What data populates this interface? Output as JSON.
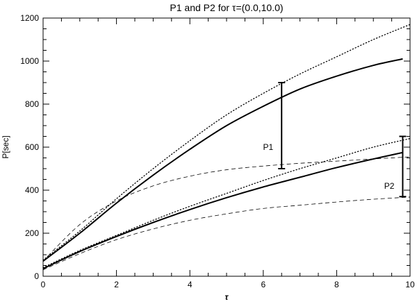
{
  "chart_data": {
    "type": "line",
    "title": "P1 and P2 for τ=(0.0,10.0)",
    "xlabel": "τ",
    "ylabel": "P[sec]",
    "xlim": [
      0,
      10
    ],
    "ylim": [
      0,
      1200
    ],
    "xticks": [
      0,
      2,
      4,
      6,
      8,
      10
    ],
    "yticks": [
      0,
      200,
      400,
      600,
      800,
      1000,
      1200
    ],
    "grid": false,
    "series": [
      {
        "style": "solid",
        "width": "thick",
        "x": [
          0,
          1,
          2,
          3,
          4,
          5,
          6,
          7,
          8,
          9,
          9.8
        ],
        "y": [
          70,
          200,
          340,
          470,
          590,
          700,
          790,
          870,
          930,
          980,
          1010
        ]
      },
      {
        "style": "dotted",
        "x": [
          0,
          1,
          2,
          3,
          4,
          5,
          6,
          7,
          8,
          9,
          10
        ],
        "y": [
          75,
          210,
          360,
          500,
          630,
          750,
          850,
          940,
          1020,
          1100,
          1170
        ]
      },
      {
        "style": "dashed",
        "x": [
          0,
          1,
          2,
          3,
          4,
          5,
          6,
          7,
          8,
          9,
          10
        ],
        "y": [
          70,
          240,
          350,
          420,
          465,
          495,
          512,
          525,
          535,
          545,
          555
        ]
      },
      {
        "style": "solid",
        "width": "thick",
        "x": [
          0,
          1,
          2,
          3,
          4,
          5,
          6,
          7,
          8,
          9,
          9.8
        ],
        "y": [
          35,
          115,
          185,
          250,
          310,
          365,
          415,
          460,
          505,
          545,
          575
        ]
      },
      {
        "style": "dotted",
        "x": [
          0,
          1,
          2,
          3,
          4,
          5,
          6,
          7,
          8,
          9,
          10
        ],
        "y": [
          40,
          120,
          190,
          260,
          325,
          385,
          445,
          500,
          550,
          600,
          640
        ]
      },
      {
        "style": "dashed",
        "x": [
          0,
          1,
          2,
          3,
          4,
          5,
          6,
          7,
          8,
          9,
          10
        ],
        "y": [
          30,
          105,
          170,
          220,
          260,
          290,
          315,
          330,
          345,
          358,
          368
        ]
      }
    ],
    "annotations": [
      {
        "label": "P1",
        "x": 6.5,
        "y_low": 500,
        "y_high": 900,
        "label_y": 600
      },
      {
        "label": "P2",
        "x": 9.8,
        "y_low": 370,
        "y_high": 650,
        "label_y": 420
      }
    ]
  }
}
